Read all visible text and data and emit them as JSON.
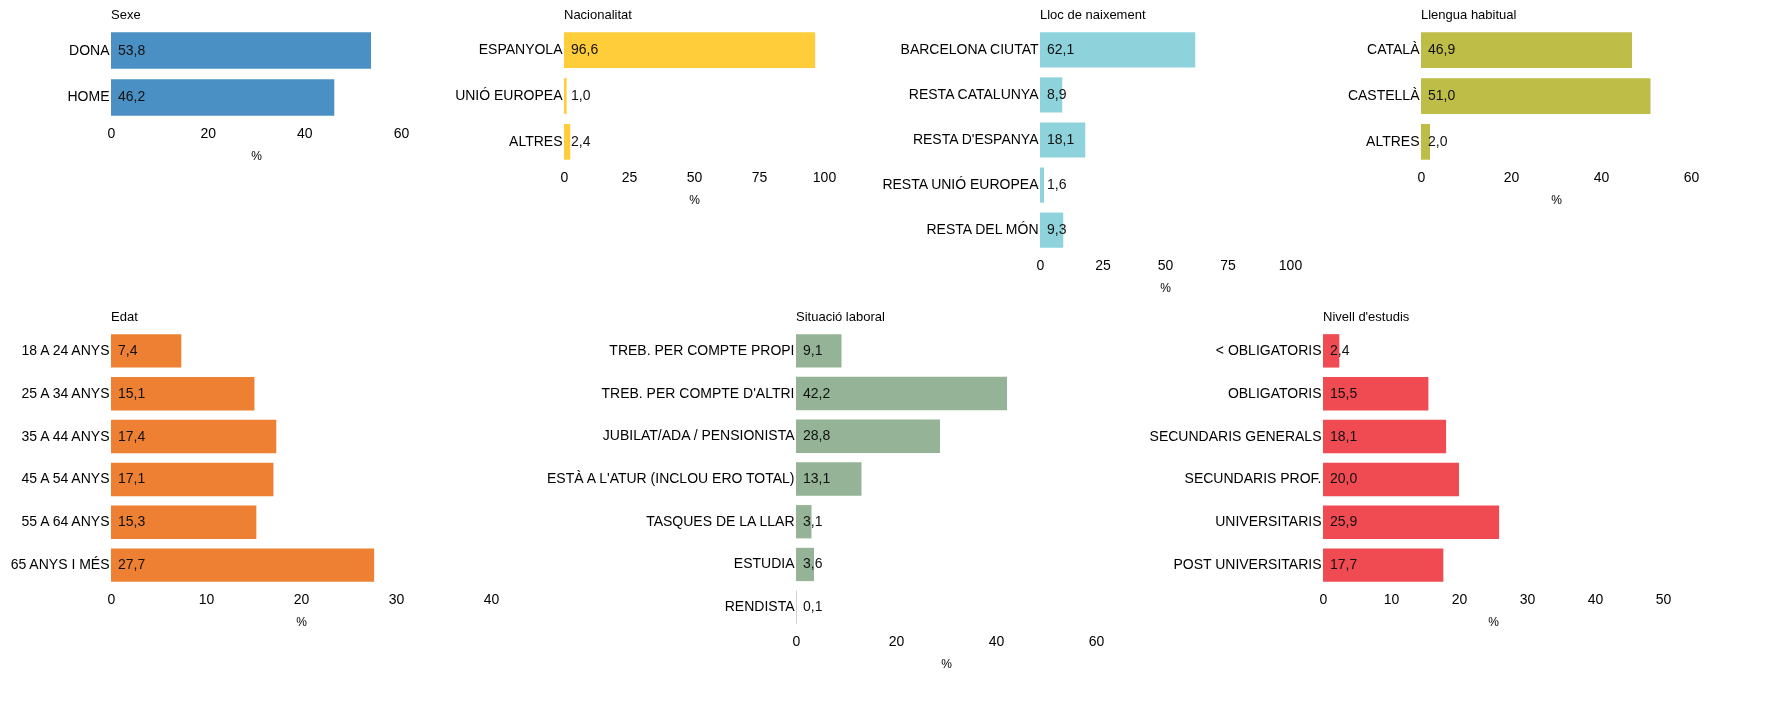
{
  "chart_data": [
    {
      "type": "bar",
      "orientation": "horizontal",
      "title": "Sexe",
      "xlabel": "%",
      "categories": [
        "DONA",
        "HOME"
      ],
      "values": [
        53.8,
        46.2
      ],
      "value_labels": [
        "53,8",
        "46,2"
      ],
      "color": "#4a90c4",
      "xlim": [
        0,
        60
      ],
      "xticks": [
        0,
        20,
        40,
        60
      ]
    },
    {
      "type": "bar",
      "orientation": "horizontal",
      "title": "Nacionalitat",
      "xlabel": "%",
      "categories": [
        "ESPANYOLA",
        "UNIÓ EUROPEA",
        "ALTRES"
      ],
      "values": [
        96.6,
        1.0,
        2.4
      ],
      "value_labels": [
        "96,6",
        "1,0",
        "2,4"
      ],
      "color": "#ffcc3a",
      "xlim": [
        0,
        100
      ],
      "xticks": [
        0,
        25,
        50,
        75,
        100
      ]
    },
    {
      "type": "bar",
      "orientation": "horizontal",
      "title": "Lloc de naixement",
      "xlabel": "%",
      "categories": [
        "BARCELONA CIUTAT",
        "RESTA CATALUNYA",
        "RESTA D'ESPANYA",
        "RESTA UNIÓ EUROPEA",
        "RESTA DEL MÓN"
      ],
      "values": [
        62.1,
        8.9,
        18.1,
        1.6,
        9.3
      ],
      "value_labels": [
        "62,1",
        "8,9",
        "18,1",
        "1,6",
        "9,3"
      ],
      "color": "#8ed3dc",
      "xlim": [
        0,
        100
      ],
      "xticks": [
        0,
        25,
        50,
        75,
        100
      ]
    },
    {
      "type": "bar",
      "orientation": "horizontal",
      "title": "Llengua habitual",
      "xlabel": "%",
      "categories": [
        "CATALÀ",
        "CASTELLÀ",
        "ALTRES"
      ],
      "values": [
        46.9,
        51.0,
        2.0
      ],
      "value_labels": [
        "46,9",
        "51,0",
        "2,0"
      ],
      "color": "#bebd48",
      "xlim": [
        0,
        60
      ],
      "xticks": [
        0,
        20,
        40,
        60
      ]
    },
    {
      "type": "bar",
      "orientation": "horizontal",
      "title": "Edat",
      "xlabel": "%",
      "categories": [
        "18 A 24 ANYS",
        "25 A 34 ANYS",
        "35 A 44 ANYS",
        "45 A 54 ANYS",
        "55 A 64 ANYS",
        "65 ANYS I MÉS"
      ],
      "values": [
        7.4,
        15.1,
        17.4,
        17.1,
        15.3,
        27.7
      ],
      "value_labels": [
        "7,4",
        "15,1",
        "17,4",
        "17,1",
        "15,3",
        "27,7"
      ],
      "color": "#ed8033",
      "xlim": [
        0,
        40
      ],
      "xticks": [
        0,
        10,
        20,
        30,
        40
      ]
    },
    {
      "type": "bar",
      "orientation": "horizontal",
      "title": "Situació laboral",
      "xlabel": "%",
      "categories": [
        "TREB. PER COMPTE PROPI",
        "TREB. PER COMPTE D'ALTRI",
        "JUBILAT/ADA / PENSIONISTA",
        "ESTÀ A L'ATUR (INCLOU ERO TOTAL)",
        "TASQUES DE LA LLAR",
        "ESTUDIA",
        "RENDISTA"
      ],
      "values": [
        9.1,
        42.2,
        28.8,
        13.1,
        3.1,
        3.6,
        0.1
      ],
      "value_labels": [
        "9,1",
        "42,2",
        "28,8",
        "13,1",
        "3,1",
        "3,6",
        "0,1"
      ],
      "color": "#95b396",
      "xlim": [
        0,
        60
      ],
      "xticks": [
        0,
        20,
        40,
        60
      ]
    },
    {
      "type": "bar",
      "orientation": "horizontal",
      "title": "Nivell d'estudis",
      "xlabel": "%",
      "categories": [
        "< OBLIGATORIS",
        "OBLIGATORIS",
        "SECUNDARIS GENERALS",
        "SECUNDARIS PROF.",
        "UNIVERSITARIS",
        "POST UNIVERSITARIS"
      ],
      "values": [
        2.4,
        15.5,
        18.1,
        20.0,
        25.9,
        17.7
      ],
      "value_labels": [
        "2,4",
        "15,5",
        "18,1",
        "20,0",
        "25,9",
        "17,7"
      ],
      "color": "#f04b52",
      "xlim": [
        0,
        50
      ],
      "xticks": [
        0,
        10,
        20,
        30,
        40,
        50
      ]
    }
  ]
}
